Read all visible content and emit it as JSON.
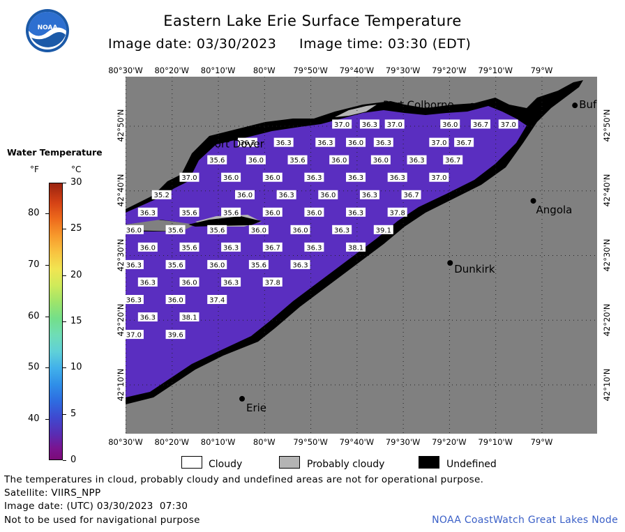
{
  "title": "Eastern Lake Erie Surface Temperature",
  "image_date_line": "Image date: 03/30/2023     Image time: 03:30 (EDT)",
  "logo_text": "NOAA",
  "longitude_ticks": [
    "80°30'W",
    "80°20'W",
    "80°10'W",
    "80°W",
    "79°50'W",
    "79°40'W",
    "79°30'W",
    "79°20'W",
    "79°10'W",
    "79°W"
  ],
  "latitude_ticks": [
    "42°50'N",
    "42°40'N",
    "42°30'N",
    "42°20'N",
    "42°10'N"
  ],
  "places": [
    {
      "name": "Port Colborne",
      "lon": -79.25,
      "lat": 42.885
    },
    {
      "name": "Port Dover",
      "lon": -80.2,
      "lat": 42.785
    },
    {
      "name": "Buf",
      "lon": -78.88,
      "lat": 42.886
    },
    {
      "name": "Angola",
      "lon": -79.03,
      "lat": 42.64
    },
    {
      "name": "Dunkirk",
      "lon": -79.33,
      "lat": 42.48
    },
    {
      "name": "Erie",
      "lon": -80.08,
      "lat": 42.13
    }
  ],
  "temperature_labels": [
    {
      "v": "37.0",
      "lon": -79.72,
      "lat": 42.837
    },
    {
      "v": "36.3",
      "lon": -79.62,
      "lat": 42.837
    },
    {
      "v": "37.0",
      "lon": -79.53,
      "lat": 42.837
    },
    {
      "v": "36.0",
      "lon": -79.33,
      "lat": 42.837
    },
    {
      "v": "36.7",
      "lon": -79.22,
      "lat": 42.837
    },
    {
      "v": "37.0",
      "lon": -79.12,
      "lat": 42.837
    },
    {
      "v": "36.7",
      "lon": -80.06,
      "lat": 42.79
    },
    {
      "v": "36.3",
      "lon": -79.93,
      "lat": 42.79
    },
    {
      "v": "36.3",
      "lon": -79.78,
      "lat": 42.79
    },
    {
      "v": "36.0",
      "lon": -79.67,
      "lat": 42.79
    },
    {
      "v": "36.3",
      "lon": -79.57,
      "lat": 42.79
    },
    {
      "v": "37.0",
      "lon": -79.37,
      "lat": 42.79
    },
    {
      "v": "36.7",
      "lon": -79.28,
      "lat": 42.79
    },
    {
      "v": "35.6",
      "lon": -80.17,
      "lat": 42.745
    },
    {
      "v": "36.0",
      "lon": -80.03,
      "lat": 42.745
    },
    {
      "v": "35.6",
      "lon": -79.88,
      "lat": 42.745
    },
    {
      "v": "36.0",
      "lon": -79.73,
      "lat": 42.745
    },
    {
      "v": "36.0",
      "lon": -79.58,
      "lat": 42.745
    },
    {
      "v": "36.3",
      "lon": -79.45,
      "lat": 42.745
    },
    {
      "v": "36.7",
      "lon": -79.32,
      "lat": 42.745
    },
    {
      "v": "37.0",
      "lon": -80.27,
      "lat": 42.7
    },
    {
      "v": "36.0",
      "lon": -80.12,
      "lat": 42.7
    },
    {
      "v": "36.0",
      "lon": -79.97,
      "lat": 42.7
    },
    {
      "v": "36.3",
      "lon": -79.82,
      "lat": 42.7
    },
    {
      "v": "36.3",
      "lon": -79.67,
      "lat": 42.7
    },
    {
      "v": "36.3",
      "lon": -79.52,
      "lat": 42.7
    },
    {
      "v": "37.0",
      "lon": -79.37,
      "lat": 42.7
    },
    {
      "v": "35.2",
      "lon": -80.37,
      "lat": 42.655
    },
    {
      "v": "36.0",
      "lon": -80.07,
      "lat": 42.655
    },
    {
      "v": "36.3",
      "lon": -79.92,
      "lat": 42.655
    },
    {
      "v": "36.0",
      "lon": -79.77,
      "lat": 42.655
    },
    {
      "v": "36.3",
      "lon": -79.62,
      "lat": 42.655
    },
    {
      "v": "36.7",
      "lon": -79.47,
      "lat": 42.655
    },
    {
      "v": "36.3",
      "lon": -80.42,
      "lat": 42.61
    },
    {
      "v": "35.6",
      "lon": -80.27,
      "lat": 42.61
    },
    {
      "v": "35.6",
      "lon": -80.12,
      "lat": 42.61
    },
    {
      "v": "36.0",
      "lon": -79.97,
      "lat": 42.61
    },
    {
      "v": "36.0",
      "lon": -79.82,
      "lat": 42.61
    },
    {
      "v": "36.3",
      "lon": -79.67,
      "lat": 42.61
    },
    {
      "v": "37.8",
      "lon": -79.52,
      "lat": 42.61
    },
    {
      "v": "36.0",
      "lon": -80.47,
      "lat": 42.565
    },
    {
      "v": "35.6",
      "lon": -80.32,
      "lat": 42.565
    },
    {
      "v": "35.6",
      "lon": -80.17,
      "lat": 42.565
    },
    {
      "v": "36.0",
      "lon": -80.02,
      "lat": 42.565
    },
    {
      "v": "36.0",
      "lon": -79.87,
      "lat": 42.565
    },
    {
      "v": "36.3",
      "lon": -79.72,
      "lat": 42.565
    },
    {
      "v": "39.1",
      "lon": -79.57,
      "lat": 42.565
    },
    {
      "v": "36.0",
      "lon": -80.42,
      "lat": 42.52
    },
    {
      "v": "35.6",
      "lon": -80.27,
      "lat": 42.52
    },
    {
      "v": "36.3",
      "lon": -80.12,
      "lat": 42.52
    },
    {
      "v": "36.7",
      "lon": -79.97,
      "lat": 42.52
    },
    {
      "v": "36.3",
      "lon": -79.82,
      "lat": 42.52
    },
    {
      "v": "38.1",
      "lon": -79.67,
      "lat": 42.52
    },
    {
      "v": "36.3",
      "lon": -80.47,
      "lat": 42.475
    },
    {
      "v": "35.6",
      "lon": -80.32,
      "lat": 42.475
    },
    {
      "v": "36.0",
      "lon": -80.17,
      "lat": 42.475
    },
    {
      "v": "35.6",
      "lon": -80.02,
      "lat": 42.475
    },
    {
      "v": "36.3",
      "lon": -79.87,
      "lat": 42.475
    },
    {
      "v": "36.3",
      "lon": -80.42,
      "lat": 42.43
    },
    {
      "v": "36.0",
      "lon": -80.27,
      "lat": 42.43
    },
    {
      "v": "36.3",
      "lon": -80.12,
      "lat": 42.43
    },
    {
      "v": "37.8",
      "lon": -79.97,
      "lat": 42.43
    },
    {
      "v": "36.3",
      "lon": -80.47,
      "lat": 42.385
    },
    {
      "v": "36.0",
      "lon": -80.32,
      "lat": 42.385
    },
    {
      "v": "37.4",
      "lon": -80.17,
      "lat": 42.385
    },
    {
      "v": "36.3",
      "lon": -80.42,
      "lat": 42.34
    },
    {
      "v": "38.1",
      "lon": -80.27,
      "lat": 42.34
    },
    {
      "v": "37.0",
      "lon": -80.47,
      "lat": 42.295
    },
    {
      "v": "39.6",
      "lon": -80.32,
      "lat": 42.295
    }
  ],
  "legend": {
    "title": "Water Temperature",
    "unit_f": "°F",
    "unit_c": "°C",
    "f_labels": [
      "40",
      "50",
      "60",
      "70",
      "80"
    ],
    "c_labels": [
      "0",
      "5",
      "10",
      "15",
      "20",
      "25",
      "30"
    ]
  },
  "key": {
    "cloudy": "Cloudy",
    "probably_cloudy": "Probably cloudy",
    "undefined": "Undefined"
  },
  "notes": {
    "disclaimer": "The temperatures in cloud, probably cloudy and undefined areas are not for operational purpose.",
    "satellite": "Satellite: VIIRS_NPP",
    "image_date_utc": "Image date: (UTC) 03/30/2023  07:30",
    "navigation": "Not to be used for navigational purpose",
    "credit": "NOAA CoastWatch Great Lakes Node"
  },
  "colors": {
    "land": "#808080",
    "water": "#5a2ec0",
    "undefined": "#000000",
    "probably_cloudy": "#b4b4b4",
    "cloudy": "#ffffff",
    "credit_text": "#3a5fc7"
  }
}
